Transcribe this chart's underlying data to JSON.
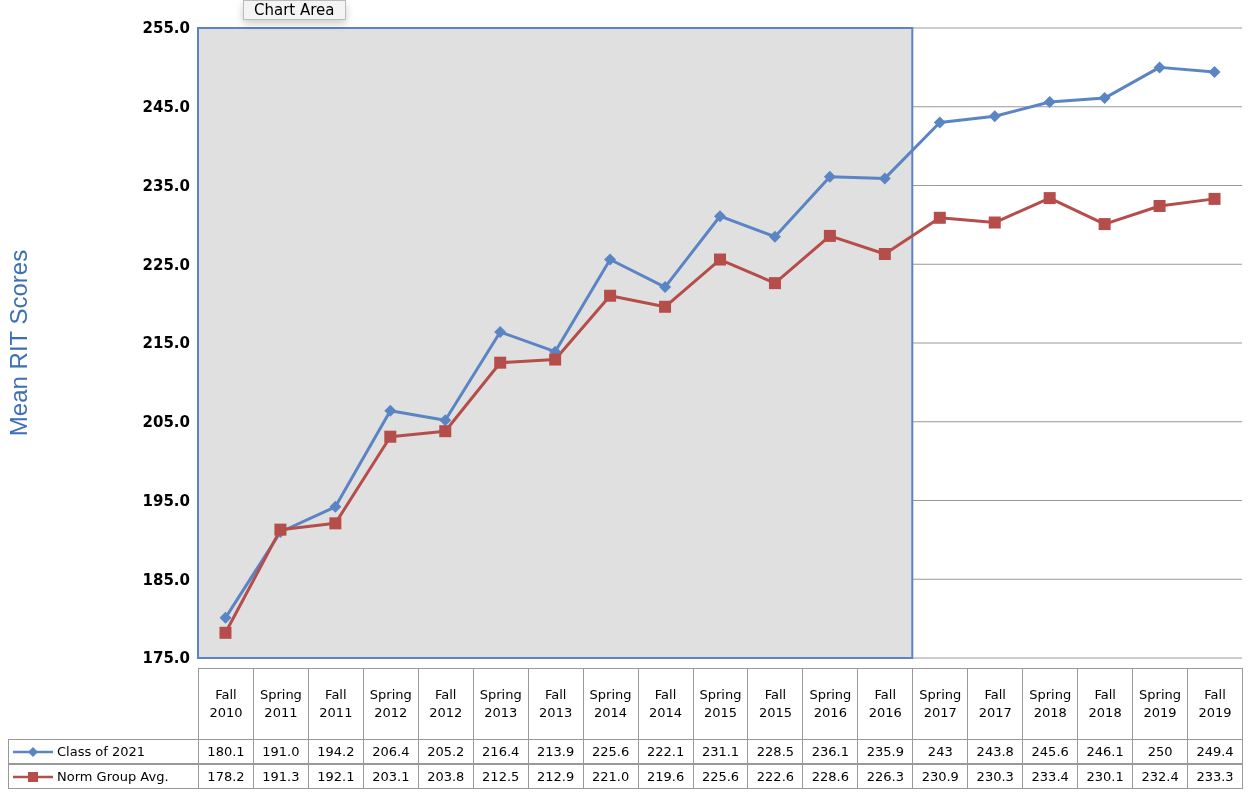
{
  "chart_data": {
    "type": "line",
    "ylabel": "Mean RIT Scores",
    "categories": [
      "Fall 2010",
      "Spring 2011",
      "Fall 2011",
      "Spring 2012",
      "Fall 2012",
      "Spring 2013",
      "Fall 2013",
      "Spring 2014",
      "Fall 2014",
      "Spring 2015",
      "Fall 2015",
      "Spring 2016",
      "Fall 2016",
      "Spring 2017",
      "Fall 2017",
      "Spring 2018",
      "Fall 2018",
      "Spring 2019",
      "Fall 2019"
    ],
    "series": [
      {
        "name": "Class of 2021",
        "color": "#5b84c4",
        "marker": "diamond",
        "values": [
          180.1,
          191.0,
          194.2,
          206.4,
          205.2,
          216.4,
          213.9,
          225.6,
          222.1,
          231.1,
          228.5,
          236.1,
          235.9,
          243,
          243.8,
          245.6,
          246.1,
          250,
          249.4
        ],
        "value_labels": [
          "180.1",
          "191.0",
          "194.2",
          "206.4",
          "205.2",
          "216.4",
          "213.9",
          "225.6",
          "222.1",
          "231.1",
          "228.5",
          "236.1",
          "235.9",
          "243",
          "243.8",
          "245.6",
          "246.1",
          "250",
          "249.4"
        ]
      },
      {
        "name": "Norm Group Avg.",
        "color": "#b54d4a",
        "marker": "square",
        "values": [
          178.2,
          191.3,
          192.1,
          203.1,
          203.8,
          212.5,
          212.9,
          221.0,
          219.6,
          225.6,
          222.6,
          228.6,
          226.3,
          230.9,
          230.3,
          233.4,
          230.1,
          232.4,
          233.3
        ],
        "value_labels": [
          "178.2",
          "191.3",
          "192.1",
          "203.1",
          "203.8",
          "212.5",
          "212.9",
          "221.0",
          "219.6",
          "225.6",
          "222.6",
          "228.6",
          "226.3",
          "230.9",
          "230.3",
          "233.4",
          "230.1",
          "232.4",
          "233.3"
        ]
      }
    ],
    "ylim": [
      175,
      255
    ],
    "yticks": [
      {
        "value": 175,
        "label": "175.0"
      },
      {
        "value": 185,
        "label": "185.0"
      },
      {
        "value": 195,
        "label": "195.0"
      },
      {
        "value": 205,
        "label": "205.0"
      },
      {
        "value": 215,
        "label": "215.0"
      },
      {
        "value": 225,
        "label": "225.0"
      },
      {
        "value": 235,
        "label": "235.0"
      },
      {
        "value": 245,
        "label": "245.0"
      },
      {
        "value": 255,
        "label": "255.0"
      }
    ],
    "grid": "y",
    "legend": "bottom",
    "line_style": "solid",
    "bands": [
      {
        "axis": "x",
        "from": "Fall 2010",
        "to": "Fall 2016",
        "color": "#e0e0e0"
      }
    ],
    "annotations": [
      "Chart Area"
    ]
  }
}
